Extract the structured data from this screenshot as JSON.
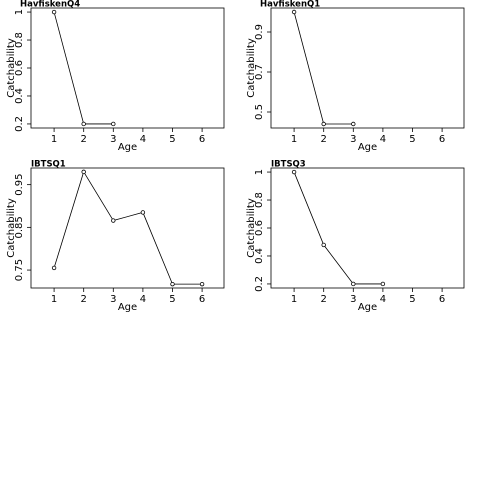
{
  "chart_data": [
    {
      "type": "line",
      "title": "HavfiskenQ4",
      "x_label": "Age",
      "y_label": "Catchability",
      "x": [
        1,
        2,
        3
      ],
      "values": [
        1.0,
        0.2,
        0.2
      ],
      "color": "#000000",
      "xlim": [
        0.22,
        6.74
      ],
      "xticks": [
        1,
        2,
        3,
        4,
        5,
        6
      ],
      "ylim": [
        0.171,
        1.029
      ],
      "yticks": [
        0.2,
        0.4,
        0.6,
        0.8,
        1.0
      ]
    },
    {
      "type": "line",
      "title": "HavfiskenQ1",
      "x_label": "Age",
      "y_label": "Catchability",
      "x": [
        1,
        2,
        3
      ],
      "values": [
        1.0,
        0.44,
        0.44
      ],
      "color": "#000000",
      "xlim": [
        0.22,
        6.74
      ],
      "xticks": [
        1,
        2,
        3,
        4,
        5,
        6
      ],
      "ylim": [
        0.42,
        1.02
      ],
      "yticks": [
        0.5,
        0.7,
        0.9
      ]
    },
    {
      "type": "line",
      "title": "IBTSQ1",
      "x_label": "Age",
      "y_label": "Catchability",
      "x": [
        1,
        2,
        3,
        4,
        5,
        6
      ],
      "values": [
        0.755,
        0.98,
        0.866,
        0.885,
        0.717,
        0.717
      ],
      "color": "#000000",
      "xlim": [
        0.22,
        6.74
      ],
      "xticks": [
        1,
        2,
        3,
        4,
        5,
        6
      ],
      "ylim": [
        0.708,
        0.989
      ],
      "yticks": [
        0.75,
        0.85,
        0.95
      ]
    },
    {
      "type": "line",
      "title": "IBTSQ3",
      "x_label": "Age",
      "y_label": "Catchability",
      "x": [
        1,
        2,
        3,
        4
      ],
      "values": [
        1.0,
        0.479,
        0.2,
        0.2
      ],
      "color": "#000000",
      "xlim": [
        0.22,
        6.74
      ],
      "xticks": [
        1,
        2,
        3,
        4,
        5,
        6
      ],
      "ylim": [
        0.171,
        1.029
      ],
      "yticks": [
        0.2,
        0.4,
        0.6,
        0.8,
        1.0
      ]
    }
  ]
}
